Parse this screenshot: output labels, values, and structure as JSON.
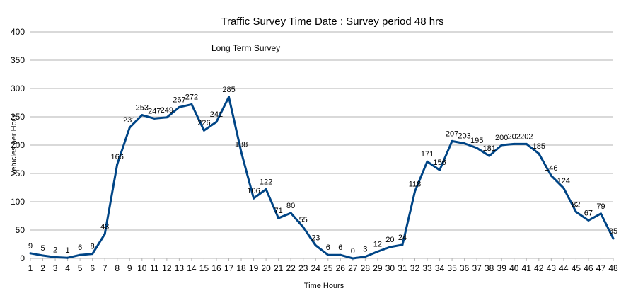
{
  "chart_data": {
    "type": "line",
    "title": "Traffic Survey  Time Date : Survey period 48 hrs",
    "annotation": "Long Term Survey",
    "xlabel": "Time Hours",
    "ylabel": "Vehicles per Hour",
    "ylim": [
      0,
      400
    ],
    "yticks": [
      0,
      50,
      100,
      150,
      200,
      250,
      300,
      350,
      400
    ],
    "grid": true,
    "x": [
      1,
      2,
      3,
      4,
      5,
      6,
      7,
      8,
      9,
      10,
      11,
      12,
      13,
      14,
      15,
      16,
      17,
      18,
      19,
      20,
      21,
      22,
      23,
      24,
      25,
      26,
      27,
      28,
      29,
      30,
      31,
      32,
      33,
      34,
      35,
      36,
      37,
      38,
      39,
      40,
      41,
      42,
      43,
      44,
      45,
      46,
      47,
      48
    ],
    "series": [
      {
        "color": "#004586",
        "values": [
          9,
          5,
          2,
          1,
          6,
          8,
          43,
          166,
          231,
          253,
          247,
          249,
          267,
          272,
          226,
          241,
          285,
          188,
          106,
          122,
          71,
          80,
          55,
          23,
          6,
          6,
          0,
          3,
          12,
          20,
          24,
          118,
          171,
          156,
          207,
          203,
          195,
          181,
          200,
          202,
          202,
          185,
          146,
          124,
          82,
          67,
          79,
          35
        ]
      }
    ]
  }
}
